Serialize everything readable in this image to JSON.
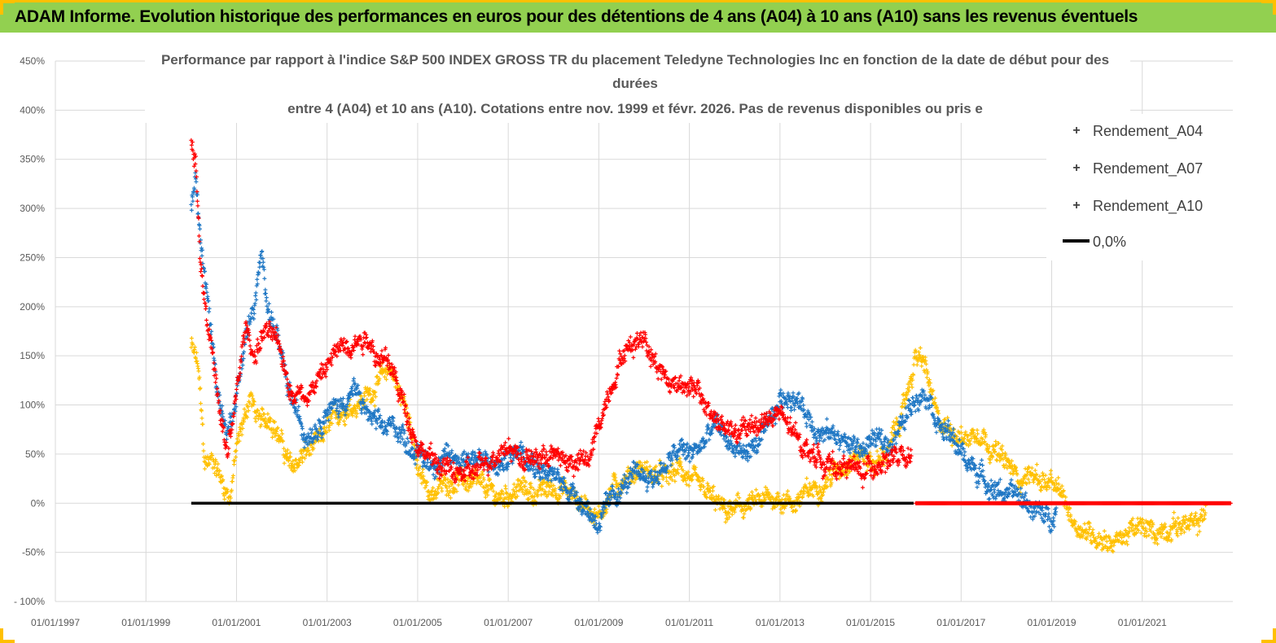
{
  "banner": {
    "title": "ADAM Informe. Evolution historique des performances en euros pour des détentions de 4 ans (A04) à 10 ans (A10) sans les revenus éventuels"
  },
  "colors": {
    "banner_bg": "#92d050",
    "banner_border": "#ffc000",
    "a04": "#ffc000",
    "a07": "#1f77c4",
    "a10": "#ff0000",
    "zero": "#000000"
  },
  "chart_data": {
    "type": "scatter",
    "title_lines": [
      "Performance par rapport à l'indice S&P 500 INDEX GROSS TR  du placement Teledyne Technologies Inc en fonction de la date de début pour des",
      "durées",
      "entre 4 (A04) et 10 ans (A10).  Cotations entre nov. 1999 et févr. 2026. Pas de revenus disponibles ou pris e"
    ],
    "x_ticks": [
      "01/01/1997",
      "01/01/1999",
      "01/01/2001",
      "01/01/2003",
      "01/01/2005",
      "01/01/2007",
      "01/01/2009",
      "01/01/2011",
      "01/01/2013",
      "01/01/2015",
      "01/01/2017",
      "01/01/2019",
      "01/01/2021"
    ],
    "xlim": [
      1997.0,
      2023.0
    ],
    "y_ticks": [
      "- 100%",
      "-50%",
      "0%",
      "50%",
      "100%",
      "150%",
      "200%",
      "250%",
      "300%",
      "350%",
      "400%",
      "450%"
    ],
    "ylim": [
      -100,
      450
    ],
    "ylabel_unit": "%",
    "legend_position": "top-right",
    "series": [
      {
        "name": "Rendement_A04",
        "marker": "+",
        "anchors": [
          [
            2000.0,
            160
          ],
          [
            2000.15,
            140
          ],
          [
            2000.3,
            40
          ],
          [
            2000.5,
            45
          ],
          [
            2000.7,
            20
          ],
          [
            2000.85,
            5
          ],
          [
            2001.0,
            55
          ],
          [
            2001.3,
            110
          ],
          [
            2001.5,
            80
          ],
          [
            2001.75,
            90
          ],
          [
            2002.0,
            60
          ],
          [
            2002.2,
            35
          ],
          [
            2002.5,
            50
          ],
          [
            2002.8,
            60
          ],
          [
            2003.0,
            75
          ],
          [
            2003.3,
            95
          ],
          [
            2003.6,
            100
          ],
          [
            2003.9,
            110
          ],
          [
            2004.1,
            120
          ],
          [
            2004.4,
            140
          ],
          [
            2004.6,
            110
          ],
          [
            2004.8,
            95
          ],
          [
            2005.0,
            30
          ],
          [
            2005.3,
            10
          ],
          [
            2005.6,
            20
          ],
          [
            2005.9,
            25
          ],
          [
            2006.2,
            20
          ],
          [
            2006.5,
            15
          ],
          [
            2006.8,
            5
          ],
          [
            2007.0,
            10
          ],
          [
            2007.3,
            15
          ],
          [
            2007.6,
            10
          ],
          [
            2007.9,
            15
          ],
          [
            2008.2,
            15
          ],
          [
            2008.5,
            5
          ],
          [
            2008.8,
            -5
          ],
          [
            2009.0,
            -15
          ],
          [
            2009.3,
            15
          ],
          [
            2009.6,
            25
          ],
          [
            2009.9,
            35
          ],
          [
            2010.2,
            30
          ],
          [
            2010.5,
            25
          ],
          [
            2010.8,
            35
          ],
          [
            2011.0,
            25
          ],
          [
            2011.2,
            15
          ],
          [
            2011.5,
            5
          ],
          [
            2011.8,
            -10
          ],
          [
            2012.1,
            -5
          ],
          [
            2012.5,
            0
          ],
          [
            2012.8,
            5
          ],
          [
            2013.0,
            5
          ],
          [
            2013.3,
            0
          ],
          [
            2013.6,
            10
          ],
          [
            2013.9,
            20
          ],
          [
            2014.2,
            30
          ],
          [
            2014.5,
            45
          ],
          [
            2014.8,
            50
          ],
          [
            2015.1,
            40
          ],
          [
            2015.4,
            55
          ],
          [
            2015.7,
            90
          ],
          [
            2015.9,
            130
          ],
          [
            2016.0,
            150
          ],
          [
            2016.2,
            140
          ],
          [
            2016.5,
            80
          ],
          [
            2016.8,
            75
          ],
          [
            2017.1,
            65
          ],
          [
            2017.4,
            75
          ],
          [
            2017.7,
            55
          ],
          [
            2018.0,
            40
          ],
          [
            2018.3,
            25
          ],
          [
            2018.6,
            30
          ],
          [
            2018.9,
            20
          ],
          [
            2019.2,
            10
          ],
          [
            2019.5,
            -20
          ],
          [
            2019.8,
            -30
          ],
          [
            2020.1,
            -35
          ],
          [
            2020.4,
            -40
          ],
          [
            2020.7,
            -30
          ],
          [
            2021.0,
            -25
          ],
          [
            2021.3,
            -30
          ],
          [
            2021.6,
            -25
          ],
          [
            2021.9,
            -20
          ],
          [
            2022.2,
            -25
          ],
          [
            2022.4,
            -5
          ]
        ]
      },
      {
        "name": "Rendement_A07",
        "marker": "+",
        "anchors": [
          [
            2000.0,
            300
          ],
          [
            2000.1,
            330
          ],
          [
            2000.2,
            270
          ],
          [
            2000.3,
            230
          ],
          [
            2000.45,
            170
          ],
          [
            2000.6,
            110
          ],
          [
            2000.8,
            70
          ],
          [
            2001.0,
            110
          ],
          [
            2001.2,
            170
          ],
          [
            2001.4,
            200
          ],
          [
            2001.55,
            250
          ],
          [
            2001.75,
            190
          ],
          [
            2001.9,
            170
          ],
          [
            2002.1,
            120
          ],
          [
            2002.3,
            95
          ],
          [
            2002.5,
            70
          ],
          [
            2002.8,
            80
          ],
          [
            2003.0,
            95
          ],
          [
            2003.3,
            100
          ],
          [
            2003.6,
            115
          ],
          [
            2003.9,
            90
          ],
          [
            2004.2,
            75
          ],
          [
            2004.5,
            80
          ],
          [
            2004.8,
            60
          ],
          [
            2005.0,
            50
          ],
          [
            2005.3,
            40
          ],
          [
            2005.6,
            45
          ],
          [
            2005.9,
            45
          ],
          [
            2006.2,
            50
          ],
          [
            2006.5,
            40
          ],
          [
            2006.8,
            35
          ],
          [
            2007.0,
            45
          ],
          [
            2007.3,
            60
          ],
          [
            2007.6,
            40
          ],
          [
            2007.9,
            30
          ],
          [
            2008.2,
            20
          ],
          [
            2008.5,
            10
          ],
          [
            2008.8,
            -10
          ],
          [
            2009.0,
            -20
          ],
          [
            2009.3,
            5
          ],
          [
            2009.6,
            20
          ],
          [
            2009.9,
            30
          ],
          [
            2010.2,
            25
          ],
          [
            2010.5,
            40
          ],
          [
            2010.8,
            55
          ],
          [
            2011.0,
            50
          ],
          [
            2011.3,
            60
          ],
          [
            2011.6,
            80
          ],
          [
            2011.9,
            60
          ],
          [
            2012.2,
            50
          ],
          [
            2012.5,
            60
          ],
          [
            2012.8,
            80
          ],
          [
            2013.0,
            105
          ],
          [
            2013.3,
            110
          ],
          [
            2013.6,
            90
          ],
          [
            2013.9,
            70
          ],
          [
            2014.2,
            70
          ],
          [
            2014.5,
            60
          ],
          [
            2014.8,
            55
          ],
          [
            2015.1,
            65
          ],
          [
            2015.4,
            60
          ],
          [
            2015.7,
            80
          ],
          [
            2015.9,
            100
          ],
          [
            2016.1,
            115
          ],
          [
            2016.3,
            110
          ],
          [
            2016.5,
            80
          ],
          [
            2016.8,
            65
          ],
          [
            2017.1,
            45
          ],
          [
            2017.4,
            30
          ],
          [
            2017.7,
            15
          ],
          [
            2018.0,
            10
          ],
          [
            2018.3,
            5
          ],
          [
            2018.6,
            -5
          ],
          [
            2018.9,
            -15
          ],
          [
            2019.1,
            -10
          ]
        ]
      },
      {
        "name": "Rendement_A10",
        "marker": "+",
        "anchors": [
          [
            2000.0,
            370
          ],
          [
            2000.1,
            350
          ],
          [
            2000.2,
            250
          ],
          [
            2000.35,
            190
          ],
          [
            2000.5,
            140
          ],
          [
            2000.65,
            80
          ],
          [
            2000.8,
            50
          ],
          [
            2001.0,
            110
          ],
          [
            2001.2,
            180
          ],
          [
            2001.4,
            150
          ],
          [
            2001.6,
            175
          ],
          [
            2001.8,
            170
          ],
          [
            2002.0,
            150
          ],
          [
            2002.2,
            115
          ],
          [
            2002.5,
            110
          ],
          [
            2002.8,
            125
          ],
          [
            2003.0,
            140
          ],
          [
            2003.3,
            160
          ],
          [
            2003.6,
            165
          ],
          [
            2003.9,
            170
          ],
          [
            2004.1,
            150
          ],
          [
            2004.4,
            140
          ],
          [
            2004.7,
            100
          ],
          [
            2005.0,
            60
          ],
          [
            2005.3,
            45
          ],
          [
            2005.6,
            35
          ],
          [
            2005.9,
            30
          ],
          [
            2006.2,
            30
          ],
          [
            2006.5,
            40
          ],
          [
            2006.8,
            55
          ],
          [
            2007.0,
            60
          ],
          [
            2007.3,
            45
          ],
          [
            2007.6,
            45
          ],
          [
            2007.9,
            50
          ],
          [
            2008.2,
            45
          ],
          [
            2008.5,
            40
          ],
          [
            2008.8,
            45
          ],
          [
            2009.0,
            80
          ],
          [
            2009.2,
            110
          ],
          [
            2009.5,
            150
          ],
          [
            2009.8,
            165
          ],
          [
            2010.0,
            170
          ],
          [
            2010.3,
            140
          ],
          [
            2010.6,
            120
          ],
          [
            2010.9,
            125
          ],
          [
            2011.2,
            110
          ],
          [
            2011.5,
            90
          ],
          [
            2011.8,
            75
          ],
          [
            2012.1,
            70
          ],
          [
            2012.4,
            80
          ],
          [
            2012.7,
            85
          ],
          [
            2013.0,
            90
          ],
          [
            2013.3,
            70
          ],
          [
            2013.6,
            55
          ],
          [
            2013.9,
            45
          ],
          [
            2014.2,
            35
          ],
          [
            2014.5,
            40
          ],
          [
            2014.8,
            30
          ],
          [
            2015.1,
            40
          ],
          [
            2015.4,
            45
          ],
          [
            2015.7,
            45
          ],
          [
            2015.9,
            40
          ]
        ]
      },
      {
        "name": "0,0%",
        "line_x": [
          2000.0,
          2015.95
        ],
        "value": 0
      }
    ],
    "zero_marks": [
      {
        "series": "Rendement_A10",
        "x_range": [
          2016.0,
          2022.95
        ],
        "value": 0
      }
    ]
  }
}
